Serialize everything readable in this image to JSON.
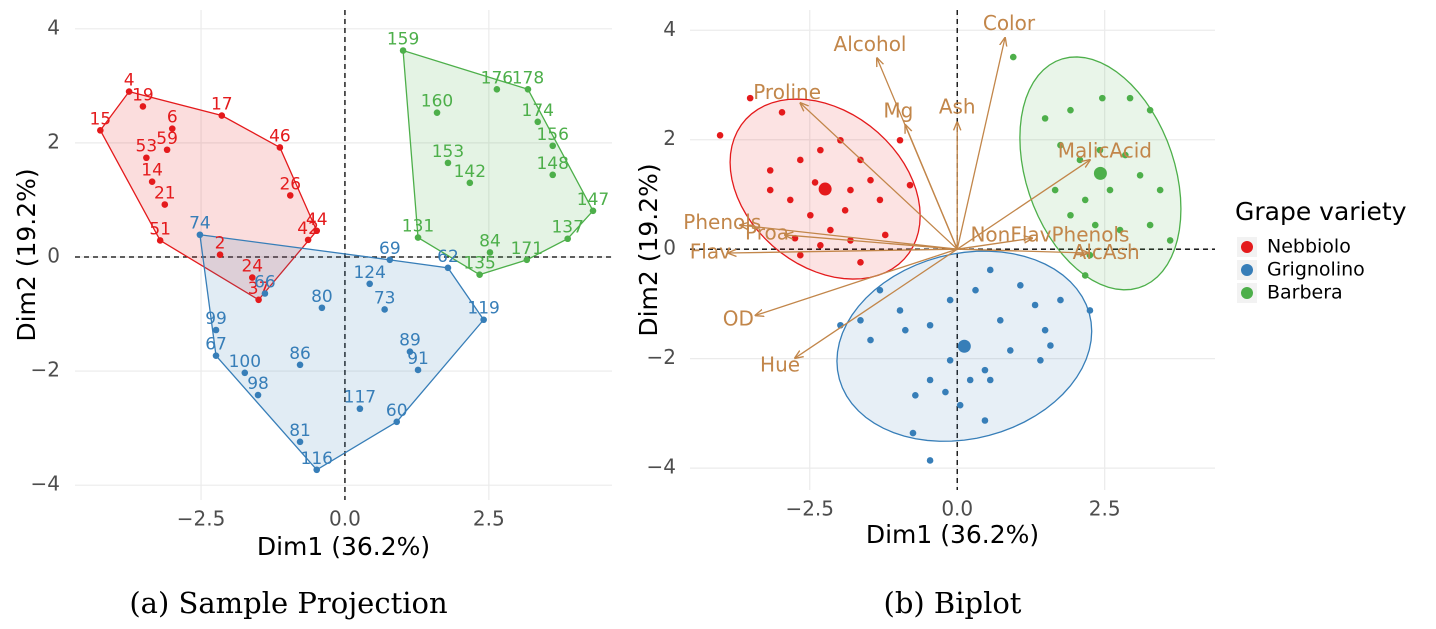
{
  "chart_data": [
    {
      "type": "projection",
      "caption": "(a) Sample Projection",
      "x_label": "Dim1 (36.2%)",
      "y_label": "Dim2 (19.2%)",
      "xlim": [
        -4.69,
        4.64
      ],
      "ylim": [
        -4.26,
        4.33
      ],
      "xticks": [
        {
          "value": -2.5,
          "label": "−2.5"
        },
        {
          "value": 0,
          "label": "0.0"
        },
        2.5
      ],
      "yticks": [
        {
          "value": -4,
          "label": "−4"
        },
        {
          "value": -2,
          "label": "−2"
        },
        0,
        2,
        4
      ],
      "grid": true,
      "hull": true,
      "series": [
        {
          "color": "#e41a1c",
          "labels": [
            "4",
            "19",
            "15",
            "6",
            "17",
            "46",
            "53",
            "59",
            "26",
            "44",
            "51",
            "24",
            "2",
            "42",
            "14",
            "21",
            "37"
          ],
          "x": [
            -3.75,
            -3.51,
            -4.25,
            -3.0,
            -2.14,
            -1.13,
            -3.45,
            -3.09,
            -0.95,
            -0.49,
            -3.21,
            -1.61,
            -2.17,
            -0.64,
            -3.35,
            -3.13,
            -1.5
          ],
          "y": [
            2.9,
            2.64,
            2.22,
            2.25,
            2.48,
            1.92,
            1.74,
            1.88,
            1.08,
            0.46,
            0.29,
            -0.36,
            0.04,
            0.3,
            1.32,
            0.92,
            -0.75
          ]
        },
        {
          "color": "#377eb8",
          "labels": [
            "69",
            "66",
            "80",
            "73",
            "124",
            "119",
            "62",
            "99",
            "67",
            "100",
            "98",
            "86",
            "89",
            "91",
            "117",
            "60",
            "81",
            "116",
            "74"
          ],
          "x": [
            0.78,
            -1.39,
            -0.4,
            0.69,
            0.43,
            2.41,
            1.79,
            -2.24,
            -2.24,
            -1.74,
            -1.51,
            -0.78,
            1.13,
            1.27,
            0.26,
            0.9,
            -0.78,
            -0.49,
            -2.52
          ],
          "y": [
            -0.05,
            -0.64,
            -0.89,
            -0.92,
            -0.47,
            -1.1,
            -0.19,
            -1.28,
            -1.73,
            -2.03,
            -2.42,
            -1.89,
            -1.66,
            -1.98,
            -2.66,
            -2.89,
            -3.24,
            -3.73,
            0.39
          ]
        },
        {
          "color": "#4daf4a",
          "labels": [
            "159",
            "176",
            "178",
            "160",
            "174",
            "156",
            "153",
            "142",
            "148",
            "147",
            "137",
            "131",
            "84",
            "171",
            "135"
          ],
          "x": [
            1.01,
            2.64,
            3.18,
            1.6,
            3.35,
            3.61,
            1.79,
            2.17,
            3.61,
            4.31,
            3.87,
            1.27,
            2.52,
            3.16,
            2.34
          ],
          "y": [
            3.62,
            2.94,
            2.94,
            2.53,
            2.37,
            1.95,
            1.65,
            1.3,
            1.44,
            0.81,
            0.32,
            0.34,
            0.08,
            -0.05,
            -0.31
          ]
        }
      ]
    },
    {
      "type": "biplot",
      "caption": "(b) Biplot",
      "x_label": "Dim1 (36.2%)",
      "y_label": "Dim2 (19.2%)",
      "xlim": [
        -4.53,
        4.37
      ],
      "ylim": [
        -4.4,
        4.37
      ],
      "xticks": [
        {
          "value": -2.5,
          "label": "−2.5"
        },
        {
          "value": 0,
          "label": "0.0"
        },
        2.5
      ],
      "yticks": [
        {
          "value": -4,
          "label": "−4"
        },
        {
          "value": -2,
          "label": "−2"
        },
        0,
        2,
        4
      ],
      "grid": true,
      "ellipses": true,
      "legend": {
        "title": "Grape variety",
        "position": "right"
      },
      "series": [
        {
          "name": "Nebbiolo",
          "color": "#e41a1c",
          "x": [
            -3.51,
            -4.02,
            -2.97,
            -3.17,
            -2.66,
            -2.32,
            -1.98,
            -1.64,
            -1.47,
            -1.31,
            -1.9,
            -2.49,
            -2.83,
            -2.15,
            -1.81,
            -2.32,
            -2.66,
            -1.64,
            -1.22,
            -0.97,
            -0.8,
            -2.75,
            -3.17,
            -2.41,
            -1.81
          ],
          "y": [
            2.76,
            2.08,
            2.5,
            1.44,
            1.63,
            1.81,
            1.99,
            1.63,
            1.26,
            0.9,
            0.71,
            0.62,
            0.9,
            0.35,
            0.16,
            0.07,
            -0.11,
            -0.24,
            0.26,
            1.99,
            1.17,
            0.2,
            1.08,
            1.22,
            1.08
          ]
        },
        {
          "name": "Grignolino",
          "color": "#377eb8",
          "x": [
            -1.31,
            -0.97,
            -1.64,
            -1.98,
            -1.47,
            -0.88,
            -0.46,
            -0.12,
            0.31,
            0.56,
            1.07,
            1.32,
            1.49,
            1.58,
            1.41,
            0.9,
            0.47,
            0.22,
            -0.12,
            -0.46,
            -0.71,
            -0.2,
            0.05,
            0.47,
            -0.75,
            -0.46,
            0.56,
            0.73,
            2.25,
            1.75
          ],
          "y": [
            -0.75,
            -1.12,
            -1.3,
            -1.39,
            -1.66,
            -1.48,
            -1.39,
            -0.93,
            -0.75,
            -0.38,
            -0.66,
            -1.02,
            -1.48,
            -1.76,
            -2.03,
            -1.85,
            -2.21,
            -2.39,
            -2.03,
            -2.39,
            -2.67,
            -2.61,
            -2.85,
            -3.13,
            -3.36,
            -3.86,
            -2.39,
            -1.3,
            -1.12,
            -0.93
          ]
        },
        {
          "name": "Barbera",
          "color": "#4daf4a",
          "x": [
            0.95,
            1.49,
            1.92,
            2.46,
            2.93,
            3.27,
            1.75,
            2.08,
            2.42,
            2.85,
            3.1,
            3.44,
            3.61,
            3.27,
            2.76,
            2.34,
            1.92,
            2.17,
            2.59,
            2.17,
            2.25,
            1.66
          ],
          "y": [
            3.51,
            2.39,
            2.54,
            2.76,
            2.76,
            2.54,
            1.9,
            1.63,
            1.81,
            1.72,
            1.35,
            1.08,
            0.16,
            0.44,
            0.35,
            0.44,
            0.62,
            0.9,
            1.08,
            -0.48,
            -0.11,
            1.08
          ]
        }
      ],
      "vectors": {
        "color": "#c2864a",
        "names": [
          "Color",
          "Alcohol",
          "Ash",
          "Mg",
          "Proline",
          "MalicAcid",
          "NonFlavPhenols",
          "AlcAsh",
          "Phenols",
          "Proa",
          "Flav",
          "OD",
          "Hue"
        ],
        "x": [
          0.81,
          -1.36,
          0,
          -0.88,
          -2.66,
          2.25,
          1.27,
          2.22,
          -3.68,
          -2.92,
          -3.88,
          -3.42,
          -2.75
        ],
        "y": [
          3.86,
          3.49,
          2.32,
          2.27,
          2.67,
          1.63,
          0.2,
          -0.07,
          0.44,
          0.26,
          -0.07,
          -1.21,
          -1.99
        ]
      }
    }
  ]
}
